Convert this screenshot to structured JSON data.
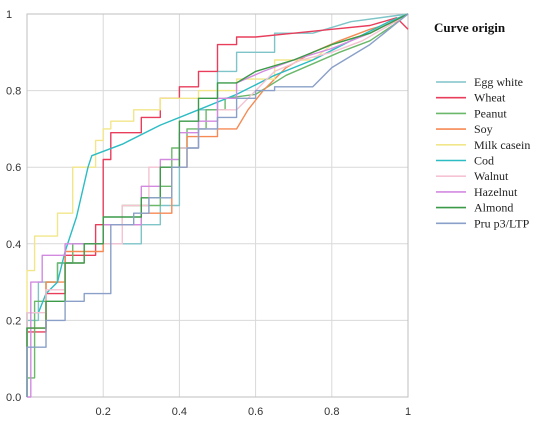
{
  "chart_data": {
    "type": "line",
    "title": "",
    "xlabel": "",
    "ylabel": "",
    "xlim": [
      0,
      1
    ],
    "ylim": [
      0,
      1
    ],
    "grid": true,
    "legend_position": "right",
    "legend_title": "Curve origin",
    "x_ticks": [
      "0.2",
      "0.4",
      "0.6",
      "0.8",
      "1"
    ],
    "y_ticks": [
      "0.0",
      "0.2",
      "0.4",
      "0.6",
      "0.8",
      "1"
    ],
    "series": [
      {
        "name": "Egg white",
        "color": "#7fc4c8",
        "points": [
          [
            0,
            0
          ],
          [
            0,
            0.2
          ],
          [
            0.03,
            0.2
          ],
          [
            0.03,
            0.3
          ],
          [
            0.08,
            0.3
          ],
          [
            0.08,
            0.35
          ],
          [
            0.12,
            0.35
          ],
          [
            0.12,
            0.4
          ],
          [
            0.3,
            0.4
          ],
          [
            0.3,
            0.45
          ],
          [
            0.35,
            0.45
          ],
          [
            0.35,
            0.5
          ],
          [
            0.4,
            0.5
          ],
          [
            0.4,
            0.65
          ],
          [
            0.45,
            0.65
          ],
          [
            0.45,
            0.75
          ],
          [
            0.5,
            0.75
          ],
          [
            0.5,
            0.85
          ],
          [
            0.55,
            0.85
          ],
          [
            0.55,
            0.9
          ],
          [
            0.65,
            0.9
          ],
          [
            0.65,
            0.95
          ],
          [
            0.75,
            0.95
          ],
          [
            0.85,
            0.98
          ],
          [
            1,
            1
          ]
        ]
      },
      {
        "name": "Wheat",
        "color": "#e83e5c",
        "points": [
          [
            0,
            0
          ],
          [
            0,
            0.17
          ],
          [
            0.05,
            0.17
          ],
          [
            0.05,
            0.27
          ],
          [
            0.1,
            0.27
          ],
          [
            0.1,
            0.37
          ],
          [
            0.18,
            0.37
          ],
          [
            0.18,
            0.45
          ],
          [
            0.2,
            0.45
          ],
          [
            0.2,
            0.62
          ],
          [
            0.22,
            0.62
          ],
          [
            0.22,
            0.69
          ],
          [
            0.3,
            0.69
          ],
          [
            0.3,
            0.73
          ],
          [
            0.35,
            0.73
          ],
          [
            0.35,
            0.78
          ],
          [
            0.4,
            0.78
          ],
          [
            0.4,
            0.81
          ],
          [
            0.45,
            0.81
          ],
          [
            0.45,
            0.85
          ],
          [
            0.5,
            0.85
          ],
          [
            0.5,
            0.92
          ],
          [
            0.55,
            0.92
          ],
          [
            0.55,
            0.94
          ],
          [
            0.6,
            0.94
          ],
          [
            0.7,
            0.95
          ],
          [
            0.8,
            0.96
          ],
          [
            0.9,
            0.97
          ],
          [
            0.97,
            0.99
          ],
          [
            1,
            0.96
          ]
        ]
      },
      {
        "name": "Peanut",
        "color": "#6bb86b",
        "points": [
          [
            0,
            0
          ],
          [
            0,
            0.05
          ],
          [
            0.02,
            0.05
          ],
          [
            0.02,
            0.25
          ],
          [
            0.05,
            0.25
          ],
          [
            0.05,
            0.3
          ],
          [
            0.08,
            0.3
          ],
          [
            0.08,
            0.35
          ],
          [
            0.12,
            0.35
          ],
          [
            0.12,
            0.4
          ],
          [
            0.2,
            0.4
          ],
          [
            0.2,
            0.45
          ],
          [
            0.25,
            0.45
          ],
          [
            0.25,
            0.5
          ],
          [
            0.35,
            0.5
          ],
          [
            0.35,
            0.55
          ],
          [
            0.38,
            0.55
          ],
          [
            0.38,
            0.65
          ],
          [
            0.42,
            0.65
          ],
          [
            0.42,
            0.7
          ],
          [
            0.47,
            0.7
          ],
          [
            0.47,
            0.75
          ],
          [
            0.52,
            0.75
          ],
          [
            0.52,
            0.78
          ],
          [
            0.6,
            0.79
          ],
          [
            0.68,
            0.84
          ],
          [
            0.75,
            0.87
          ],
          [
            0.82,
            0.9
          ],
          [
            0.9,
            0.93
          ],
          [
            0.96,
            0.97
          ],
          [
            1,
            1
          ]
        ]
      },
      {
        "name": "Soy",
        "color": "#f58a55",
        "points": [
          [
            0,
            0
          ],
          [
            0,
            0.18
          ],
          [
            0.05,
            0.18
          ],
          [
            0.05,
            0.3
          ],
          [
            0.1,
            0.3
          ],
          [
            0.1,
            0.38
          ],
          [
            0.2,
            0.38
          ],
          [
            0.2,
            0.45
          ],
          [
            0.3,
            0.45
          ],
          [
            0.3,
            0.48
          ],
          [
            0.38,
            0.48
          ],
          [
            0.38,
            0.6
          ],
          [
            0.42,
            0.6
          ],
          [
            0.42,
            0.68
          ],
          [
            0.5,
            0.68
          ],
          [
            0.5,
            0.7
          ],
          [
            0.55,
            0.7
          ],
          [
            0.58,
            0.75
          ],
          [
            0.62,
            0.8
          ],
          [
            0.68,
            0.86
          ],
          [
            0.75,
            0.9
          ],
          [
            0.82,
            0.93
          ],
          [
            0.9,
            0.96
          ],
          [
            0.97,
            0.98
          ],
          [
            1,
            1
          ]
        ]
      },
      {
        "name": "Milk casein",
        "color": "#f2e68a",
        "points": [
          [
            0,
            0
          ],
          [
            0,
            0.33
          ],
          [
            0.02,
            0.33
          ],
          [
            0.02,
            0.42
          ],
          [
            0.08,
            0.42
          ],
          [
            0.08,
            0.48
          ],
          [
            0.12,
            0.48
          ],
          [
            0.12,
            0.6
          ],
          [
            0.18,
            0.6
          ],
          [
            0.18,
            0.67
          ],
          [
            0.2,
            0.67
          ],
          [
            0.2,
            0.7
          ],
          [
            0.22,
            0.7
          ],
          [
            0.22,
            0.72
          ],
          [
            0.28,
            0.72
          ],
          [
            0.28,
            0.75
          ],
          [
            0.35,
            0.75
          ],
          [
            0.35,
            0.78
          ],
          [
            0.45,
            0.78
          ],
          [
            0.45,
            0.8
          ],
          [
            0.55,
            0.8
          ],
          [
            0.55,
            0.83
          ],
          [
            0.65,
            0.83
          ],
          [
            0.65,
            0.88
          ],
          [
            0.75,
            0.88
          ],
          [
            0.8,
            0.92
          ],
          [
            0.9,
            0.95
          ],
          [
            0.95,
            0.98
          ],
          [
            1,
            1
          ]
        ]
      },
      {
        "name": "Cod",
        "color": "#2bbcc4",
        "points": [
          [
            0,
            0
          ],
          [
            0,
            0.22
          ],
          [
            0.03,
            0.22
          ],
          [
            0.05,
            0.27
          ],
          [
            0.08,
            0.3
          ],
          [
            0.1,
            0.38
          ],
          [
            0.13,
            0.47
          ],
          [
            0.16,
            0.6
          ],
          [
            0.17,
            0.63
          ],
          [
            0.25,
            0.66
          ],
          [
            0.35,
            0.71
          ],
          [
            0.45,
            0.75
          ],
          [
            0.55,
            0.79
          ],
          [
            0.65,
            0.84
          ],
          [
            0.75,
            0.88
          ],
          [
            0.85,
            0.93
          ],
          [
            0.95,
            0.98
          ],
          [
            1,
            1
          ]
        ]
      },
      {
        "name": "Walnut",
        "color": "#f5c3d2",
        "points": [
          [
            0,
            0
          ],
          [
            0,
            0.22
          ],
          [
            0.05,
            0.22
          ],
          [
            0.05,
            0.28
          ],
          [
            0.1,
            0.28
          ],
          [
            0.1,
            0.35
          ],
          [
            0.15,
            0.35
          ],
          [
            0.15,
            0.4
          ],
          [
            0.25,
            0.4
          ],
          [
            0.25,
            0.5
          ],
          [
            0.32,
            0.5
          ],
          [
            0.32,
            0.6
          ],
          [
            0.4,
            0.6
          ],
          [
            0.4,
            0.65
          ],
          [
            0.45,
            0.65
          ],
          [
            0.45,
            0.7
          ],
          [
            0.5,
            0.7
          ],
          [
            0.5,
            0.75
          ],
          [
            0.55,
            0.75
          ],
          [
            0.6,
            0.8
          ],
          [
            0.65,
            0.85
          ],
          [
            0.72,
            0.88
          ],
          [
            0.8,
            0.9
          ],
          [
            0.88,
            0.93
          ],
          [
            0.95,
            0.97
          ],
          [
            1,
            1
          ]
        ]
      },
      {
        "name": "Hazelnut",
        "color": "#d28ae0",
        "points": [
          [
            0,
            0
          ],
          [
            0.01,
            0
          ],
          [
            0.01,
            0.3
          ],
          [
            0.04,
            0.3
          ],
          [
            0.04,
            0.37
          ],
          [
            0.1,
            0.37
          ],
          [
            0.1,
            0.4
          ],
          [
            0.2,
            0.4
          ],
          [
            0.2,
            0.45
          ],
          [
            0.3,
            0.45
          ],
          [
            0.3,
            0.55
          ],
          [
            0.35,
            0.55
          ],
          [
            0.35,
            0.62
          ],
          [
            0.4,
            0.62
          ],
          [
            0.4,
            0.69
          ],
          [
            0.45,
            0.69
          ],
          [
            0.45,
            0.72
          ],
          [
            0.5,
            0.72
          ],
          [
            0.5,
            0.78
          ],
          [
            0.55,
            0.78
          ],
          [
            0.55,
            0.82
          ],
          [
            0.62,
            0.85
          ],
          [
            0.7,
            0.88
          ],
          [
            0.8,
            0.91
          ],
          [
            0.9,
            0.95
          ],
          [
            1,
            1
          ]
        ]
      },
      {
        "name": "Almond",
        "color": "#3a9a48",
        "points": [
          [
            0,
            0
          ],
          [
            0,
            0.18
          ],
          [
            0.05,
            0.18
          ],
          [
            0.05,
            0.25
          ],
          [
            0.1,
            0.25
          ],
          [
            0.1,
            0.35
          ],
          [
            0.15,
            0.35
          ],
          [
            0.15,
            0.4
          ],
          [
            0.2,
            0.4
          ],
          [
            0.2,
            0.47
          ],
          [
            0.3,
            0.47
          ],
          [
            0.3,
            0.52
          ],
          [
            0.35,
            0.52
          ],
          [
            0.35,
            0.6
          ],
          [
            0.4,
            0.6
          ],
          [
            0.4,
            0.72
          ],
          [
            0.45,
            0.72
          ],
          [
            0.45,
            0.78
          ],
          [
            0.5,
            0.78
          ],
          [
            0.5,
            0.82
          ],
          [
            0.55,
            0.82
          ],
          [
            0.6,
            0.85
          ],
          [
            0.7,
            0.88
          ],
          [
            0.8,
            0.92
          ],
          [
            0.9,
            0.95
          ],
          [
            1,
            1
          ]
        ]
      },
      {
        "name": "Pru p3/LTP",
        "color": "#8aa0c8",
        "points": [
          [
            0,
            0
          ],
          [
            0,
            0.13
          ],
          [
            0.05,
            0.13
          ],
          [
            0.05,
            0.2
          ],
          [
            0.1,
            0.2
          ],
          [
            0.1,
            0.25
          ],
          [
            0.15,
            0.25
          ],
          [
            0.15,
            0.27
          ],
          [
            0.22,
            0.27
          ],
          [
            0.22,
            0.45
          ],
          [
            0.28,
            0.45
          ],
          [
            0.28,
            0.48
          ],
          [
            0.32,
            0.48
          ],
          [
            0.32,
            0.52
          ],
          [
            0.38,
            0.52
          ],
          [
            0.38,
            0.6
          ],
          [
            0.42,
            0.6
          ],
          [
            0.42,
            0.65
          ],
          [
            0.45,
            0.65
          ],
          [
            0.45,
            0.7
          ],
          [
            0.5,
            0.7
          ],
          [
            0.5,
            0.73
          ],
          [
            0.55,
            0.73
          ],
          [
            0.55,
            0.78
          ],
          [
            0.6,
            0.78
          ],
          [
            0.6,
            0.8
          ],
          [
            0.65,
            0.8
          ],
          [
            0.65,
            0.81
          ],
          [
            0.75,
            0.81
          ],
          [
            0.8,
            0.86
          ],
          [
            0.9,
            0.92
          ],
          [
            1,
            1
          ]
        ]
      }
    ]
  }
}
